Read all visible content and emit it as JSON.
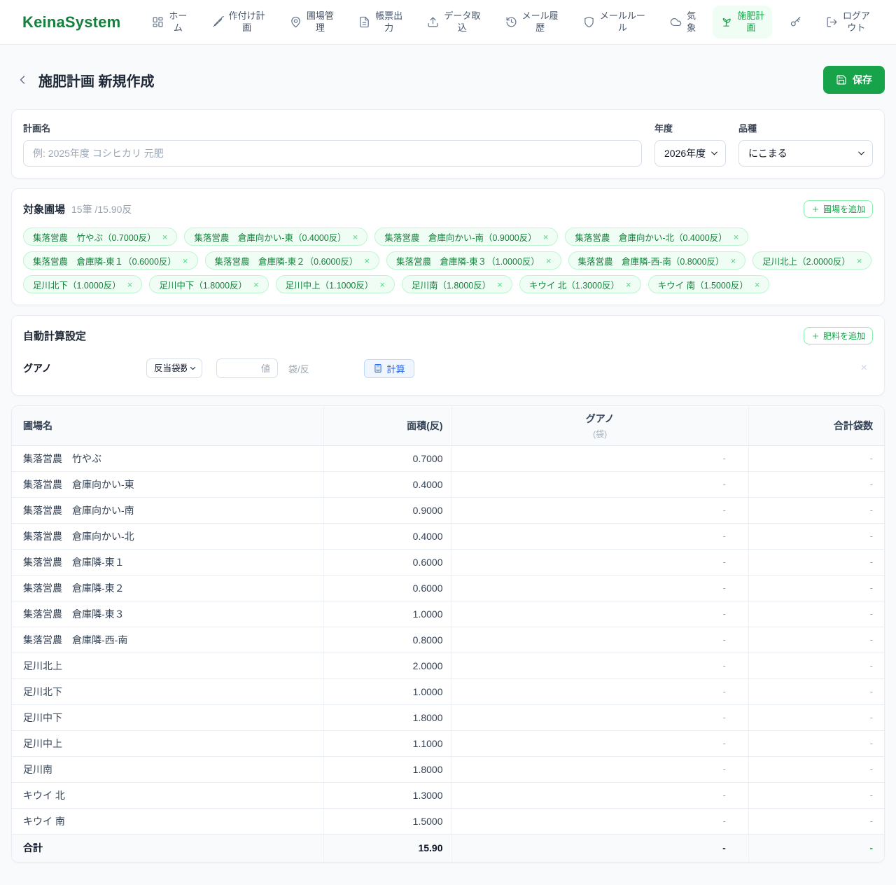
{
  "brand": {
    "name": "KeinaSystem",
    "color": "#15803d"
  },
  "colors": {
    "accent_green": "#16a34a",
    "chip_green_text": "#15803d",
    "chip_green_bg": "#f0fdf4",
    "calc_blue": "#2563eb"
  },
  "nav": {
    "items": [
      {
        "label": "ホー\nム",
        "icon": "grid",
        "active": false
      },
      {
        "label": "作付け計\n画",
        "icon": "wheat",
        "active": false
      },
      {
        "label": "圃場管\n理",
        "icon": "map-pin",
        "active": false
      },
      {
        "label": "帳票出\n力",
        "icon": "file-text",
        "active": false
      },
      {
        "label": "データ取\n込",
        "icon": "upload",
        "active": false
      },
      {
        "label": "メール履\n歴",
        "icon": "history",
        "active": false
      },
      {
        "label": "メールルー\nル",
        "icon": "shield",
        "active": false
      },
      {
        "label": "気\n象",
        "icon": "cloud",
        "active": false
      },
      {
        "label": "施肥計\n画",
        "icon": "sprout",
        "active": true
      },
      {
        "label": "",
        "icon": "key",
        "active": false
      },
      {
        "label": "ログア\nウト",
        "icon": "logout",
        "active": false
      }
    ]
  },
  "page": {
    "title": "施肥計画 新規作成",
    "save_label": "保存"
  },
  "form": {
    "plan_name": {
      "label": "計画名",
      "placeholder": "例: 2025年度 コシヒカリ 元肥",
      "value": ""
    },
    "year": {
      "label": "年度",
      "value": "2026年度"
    },
    "variety": {
      "label": "品種",
      "value": "にこまる"
    }
  },
  "fields_section": {
    "title": "対象圃場",
    "count": "15筆",
    "total": "/15.90反",
    "add_button": "圃場を追加",
    "remove_glyph": "×",
    "chips": [
      "集落営農　竹やぶ（0.7000反）",
      "集落営農　倉庫向かい-東（0.4000反）",
      "集落営農　倉庫向かい-南（0.9000反）",
      "集落営農　倉庫向かい-北（0.4000反）",
      "集落営農　倉庫隣-東１（0.6000反）",
      "集落営農　倉庫隣-東２（0.6000反）",
      "集落営農　倉庫隣-東３（1.0000反）",
      "集落営農　倉庫隣-西-南（0.8000反）",
      "足川北上（2.0000反）",
      "足川北下（1.0000反）",
      "足川中下（1.8000反）",
      "足川中上（1.1000反）",
      "足川南（1.8000反）",
      "キウイ 北（1.3000反）",
      "キウイ 南（1.5000反）"
    ]
  },
  "calc_section": {
    "title": "自動計算設定",
    "add_button": "肥料を追加",
    "row": {
      "fertilizer": "グアノ",
      "mode": "反当袋数",
      "value_placeholder": "値",
      "value": "",
      "unit": "袋/反",
      "calc_label": "計算",
      "remove_glyph": "×"
    }
  },
  "table": {
    "headers": {
      "field": "圃場名",
      "area": "面積(反)",
      "fertilizer": "グアノ",
      "fertilizer_unit": "(袋)",
      "total": "合計袋数"
    },
    "empty_cell": "-",
    "rows": [
      {
        "name": "集落営農　竹やぶ",
        "area": "0.7000"
      },
      {
        "name": "集落営農　倉庫向かい-東",
        "area": "0.4000"
      },
      {
        "name": "集落営農　倉庫向かい-南",
        "area": "0.9000"
      },
      {
        "name": "集落営農　倉庫向かい-北",
        "area": "0.4000"
      },
      {
        "name": "集落営農　倉庫隣-東１",
        "area": "0.6000"
      },
      {
        "name": "集落営農　倉庫隣-東２",
        "area": "0.6000"
      },
      {
        "name": "集落営農　倉庫隣-東３",
        "area": "1.0000"
      },
      {
        "name": "集落営農　倉庫隣-西-南",
        "area": "0.8000"
      },
      {
        "name": "足川北上",
        "area": "2.0000"
      },
      {
        "name": "足川北下",
        "area": "1.0000"
      },
      {
        "name": "足川中下",
        "area": "1.8000"
      },
      {
        "name": "足川中上",
        "area": "1.1000"
      },
      {
        "name": "足川南",
        "area": "1.8000"
      },
      {
        "name": "キウイ 北",
        "area": "1.3000"
      },
      {
        "name": "キウイ 南",
        "area": "1.5000"
      }
    ],
    "footer": {
      "label": "合計",
      "area": "15.90",
      "fertilizer": "-",
      "total": "-"
    }
  }
}
